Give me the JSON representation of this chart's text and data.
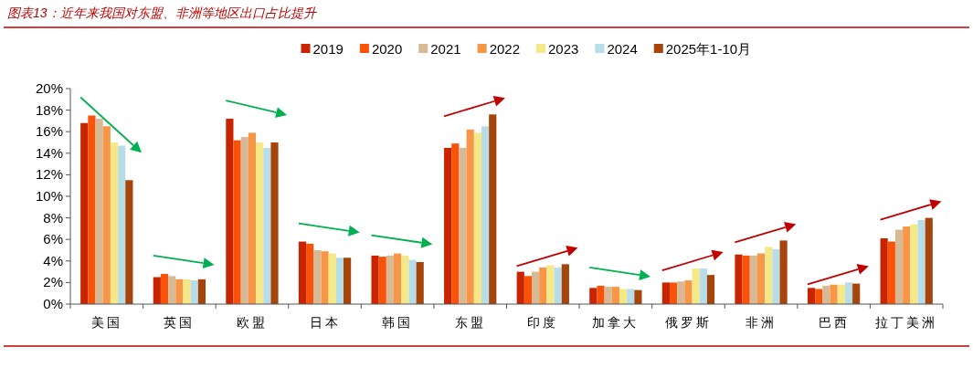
{
  "chart_data": {
    "type": "bar",
    "title": "图表13：近年来我国对东盟、非洲等地区出口占比提升",
    "categories": [
      "美国",
      "英国",
      "欧盟",
      "日本",
      "韩国",
      "东盟",
      "印度",
      "加拿大",
      "俄罗斯",
      "非洲",
      "巴西",
      "拉丁美洲"
    ],
    "series": [
      {
        "name": "2019",
        "color": "#c82400",
        "values": [
          16.8,
          2.5,
          17.2,
          5.8,
          4.5,
          14.5,
          3.0,
          1.5,
          2.0,
          4.6,
          1.5,
          6.1
        ]
      },
      {
        "name": "2020",
        "color": "#f9530a",
        "values": [
          17.5,
          2.8,
          15.2,
          5.6,
          4.4,
          14.9,
          2.6,
          1.7,
          2.0,
          4.5,
          1.4,
          5.8
        ]
      },
      {
        "name": "2021",
        "color": "#d7b995",
        "values": [
          17.2,
          2.6,
          15.5,
          5.0,
          4.5,
          14.5,
          3.0,
          1.6,
          2.1,
          4.5,
          1.7,
          6.9
        ]
      },
      {
        "name": "2022",
        "color": "#f79646",
        "values": [
          16.5,
          2.3,
          15.9,
          4.9,
          4.7,
          16.2,
          3.4,
          1.6,
          2.2,
          4.7,
          1.8,
          7.2
        ]
      },
      {
        "name": "2023",
        "color": "#f6e787",
        "values": [
          15.0,
          2.3,
          15.0,
          4.7,
          4.5,
          15.9,
          3.6,
          1.4,
          3.3,
          5.3,
          1.8,
          7.4
        ]
      },
      {
        "name": "2024",
        "color": "#b7dde8",
        "values": [
          14.7,
          2.2,
          14.5,
          4.3,
          4.1,
          16.5,
          3.4,
          1.4,
          3.3,
          5.1,
          2.0,
          7.8
        ]
      },
      {
        "name": "2025年1-10月",
        "color": "#a5450b",
        "values": [
          11.5,
          2.3,
          15.0,
          4.3,
          3.9,
          17.6,
          3.7,
          1.3,
          2.7,
          5.9,
          1.9,
          8.0
        ]
      }
    ],
    "ylim": [
      0,
      20
    ],
    "yticks": [
      {
        "value": 0,
        "label": "0%"
      },
      {
        "value": 2,
        "label": "2%"
      },
      {
        "value": 4,
        "label": "4%"
      },
      {
        "value": 6,
        "label": "6%"
      },
      {
        "value": 8,
        "label": "8%"
      },
      {
        "value": 10,
        "label": "10%"
      },
      {
        "value": 12,
        "label": "12%"
      },
      {
        "value": 14,
        "label": "14%"
      },
      {
        "value": 16,
        "label": "16%"
      },
      {
        "value": 18,
        "label": "18%"
      },
      {
        "value": 20,
        "label": "20%"
      }
    ],
    "grid": false,
    "legend": "top"
  }
}
